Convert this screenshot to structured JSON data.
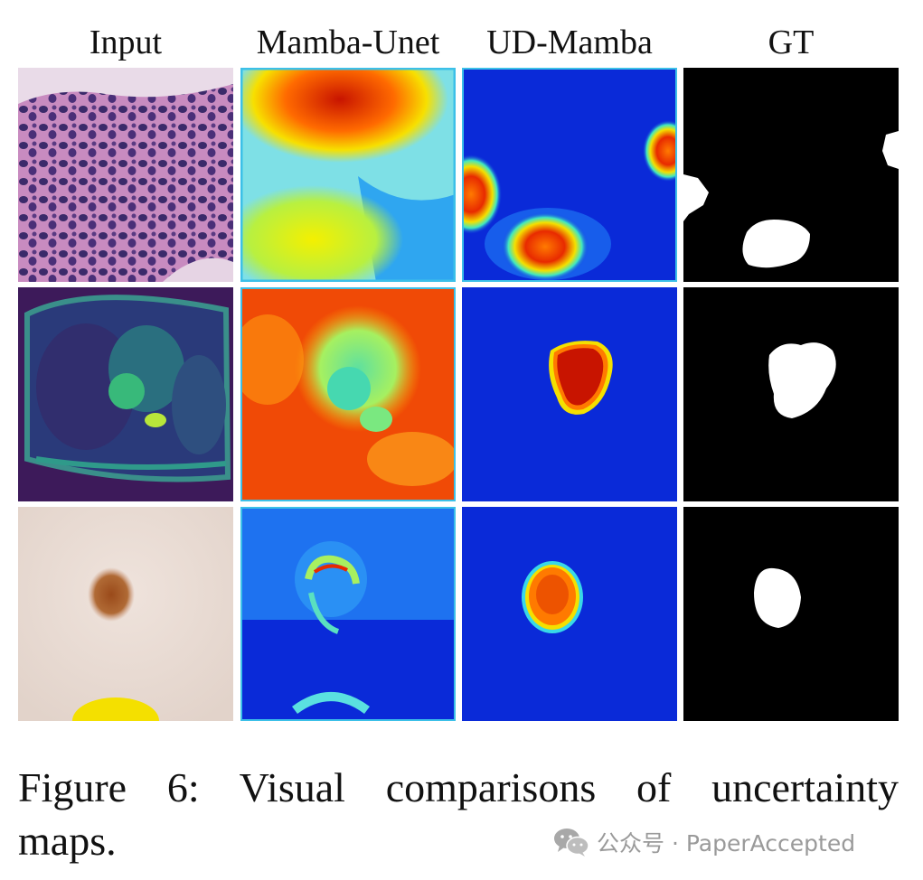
{
  "figure": {
    "columns": [
      {
        "label": "Input"
      },
      {
        "label": "Mamba-Unet"
      },
      {
        "label": "UD-Mamba"
      },
      {
        "label": "GT"
      }
    ],
    "rows": 3,
    "caption_line1": "Figure 6:  Visual comparisons of uncertainty",
    "caption_line2": "maps."
  },
  "watermark": {
    "icon": "wechat-icon",
    "text": "公众号 · PaperAccepted"
  },
  "colors": {
    "jet_blue": "#0a2ad8",
    "jet_red": "#c81400",
    "jet_yellow": "#f4f000",
    "gt_fg": "#ffffff",
    "gt_bg": "#000000"
  }
}
